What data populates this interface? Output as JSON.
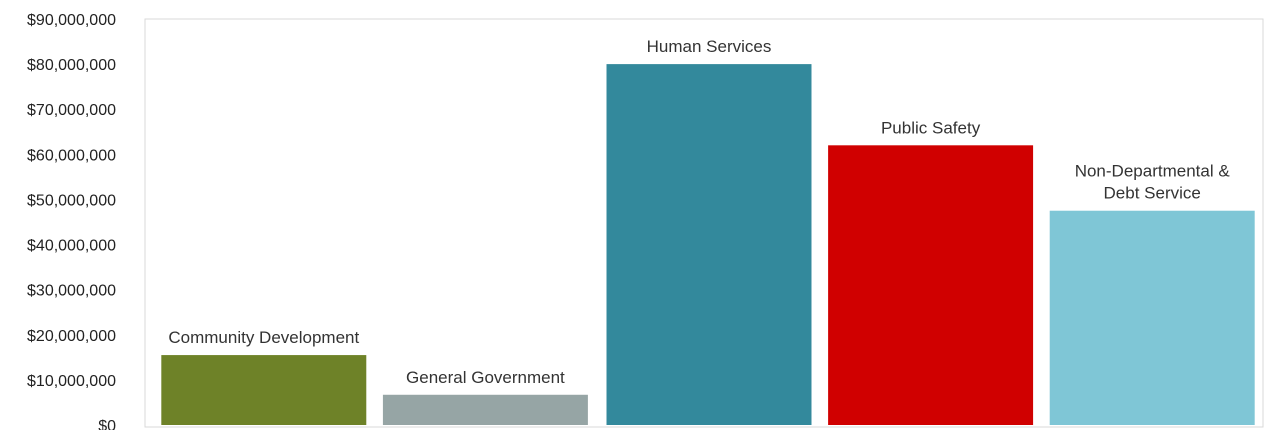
{
  "chart_data": {
    "type": "bar",
    "title": "",
    "xlabel": "",
    "ylabel": "",
    "ylim": [
      0,
      90000000
    ],
    "y_ticks": [
      {
        "value": 0,
        "label": "$0"
      },
      {
        "value": 10000000,
        "label": "$10,000,000"
      },
      {
        "value": 20000000,
        "label": "$20,000,000"
      },
      {
        "value": 30000000,
        "label": "$30,000,000"
      },
      {
        "value": 40000000,
        "label": "$40,000,000"
      },
      {
        "value": 50000000,
        "label": "$50,000,000"
      },
      {
        "value": 60000000,
        "label": "$60,000,000"
      },
      {
        "value": 70000000,
        "label": "$70,000,000"
      },
      {
        "value": 80000000,
        "label": "$80,000,000"
      },
      {
        "value": 90000000,
        "label": "$90,000,000"
      }
    ],
    "grid": false,
    "legend": "none",
    "bars": [
      {
        "category": "Community Development",
        "label_lines": [
          "Community Development"
        ],
        "value": 15500000,
        "color": "#6e8228"
      },
      {
        "category": "General Government",
        "label_lines": [
          "General Government"
        ],
        "value": 6700000,
        "color": "#96a5a5"
      },
      {
        "category": "Human Services",
        "label_lines": [
          "Human Services"
        ],
        "value": 80000000,
        "color": "#33899c"
      },
      {
        "category": "Public Safety",
        "label_lines": [
          "Public Safety"
        ],
        "value": 62000000,
        "color": "#d00000"
      },
      {
        "category": "Non-Departmental & Debt Service",
        "label_lines": [
          "Non-Departmental &",
          "Debt Service"
        ],
        "value": 47500000,
        "color": "#7fc6d6"
      }
    ]
  },
  "colors": {
    "plot_border": "#d9d9d9",
    "tick_text": "#222222",
    "label_text": "#333333"
  }
}
